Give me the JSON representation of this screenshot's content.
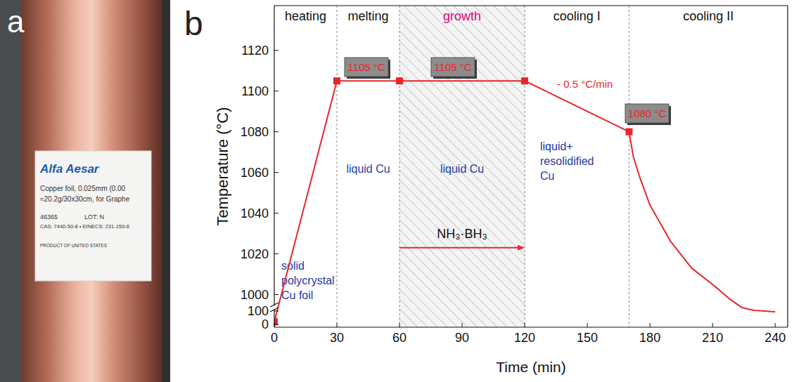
{
  "panel_labels": [
    "a",
    "b"
  ],
  "photo": {
    "brand": "Alfa Aesar",
    "lines": [
      "Copper foil, 0.025mm (0.00",
      "≈20.2g/30x30cm, for Graphe"
    ],
    "catalog": "46365",
    "lot": "LOT: N",
    "registry": "CAS: 7440-50-8 • EINECS: 231-159-6",
    "origin": "PRODUCT OF UNITED STATES"
  },
  "chart_data": {
    "type": "line",
    "x_label": "Time (min)",
    "y_label": "Temperature (°C)",
    "xlim": [
      0,
      246
    ],
    "xticks": [
      0,
      30,
      60,
      90,
      120,
      150,
      180,
      210,
      240
    ],
    "ylim": [
      -20,
      1142
    ],
    "y_break": [
      110,
      995
    ],
    "yticks": [
      0,
      100,
      1000,
      1020,
      1040,
      1060,
      1080,
      1100,
      1120
    ],
    "series": [
      {
        "color": "#e8262b",
        "line_style": "solid",
        "marker": "none",
        "x": [
          0,
          30,
          60,
          120,
          170,
          172,
          175,
          180,
          190,
          200,
          210,
          218,
          224,
          230,
          240
        ],
        "values": [
          20,
          1105,
          1105,
          1105,
          1080,
          1068,
          1058,
          1044,
          1026,
          1013,
          1005,
          998,
          500,
          105,
          95
        ]
      },
      {
        "color": "#e8262b",
        "line_style": "none",
        "marker": "square",
        "x": [
          0,
          30,
          60,
          120,
          170
        ],
        "values": [
          20,
          1105,
          1105,
          1105,
          1080
        ]
      }
    ],
    "phases": [
      {
        "label": "heating",
        "x": [
          0,
          30
        ]
      },
      {
        "label": "melting",
        "x": [
          30,
          60
        ]
      },
      {
        "label": "growth",
        "x": [
          60,
          120
        ],
        "color": "#e6007e"
      },
      {
        "label": "cooling I",
        "x": [
          120,
          170
        ]
      },
      {
        "label": "cooling II",
        "x": [
          170,
          246
        ]
      }
    ],
    "hatch_range": [
      60,
      120
    ],
    "states": [
      {
        "lines": [
          "solid",
          "polycrystal",
          "Cu foil"
        ],
        "color": "#1d3ba8"
      },
      {
        "lines": [
          "liquid Cu"
        ],
        "color": "#1d3ba8"
      },
      {
        "lines": [
          "liquid Cu"
        ],
        "color": "#1d3ba8"
      },
      {
        "lines": [
          "liquid+",
          "resolidified",
          "Cu"
        ],
        "color": "#1d3ba8"
      }
    ],
    "setpoint_labels": [
      "1105 °C",
      "1105 °C",
      "1080 °C"
    ],
    "rate_label": {
      "text": "- 0.5 °C/min",
      "color": "#e8262b"
    },
    "precursor": {
      "label": "NH₃·BH₃",
      "x": [
        60,
        120
      ],
      "y": 1023,
      "color": "#e8262b"
    }
  }
}
